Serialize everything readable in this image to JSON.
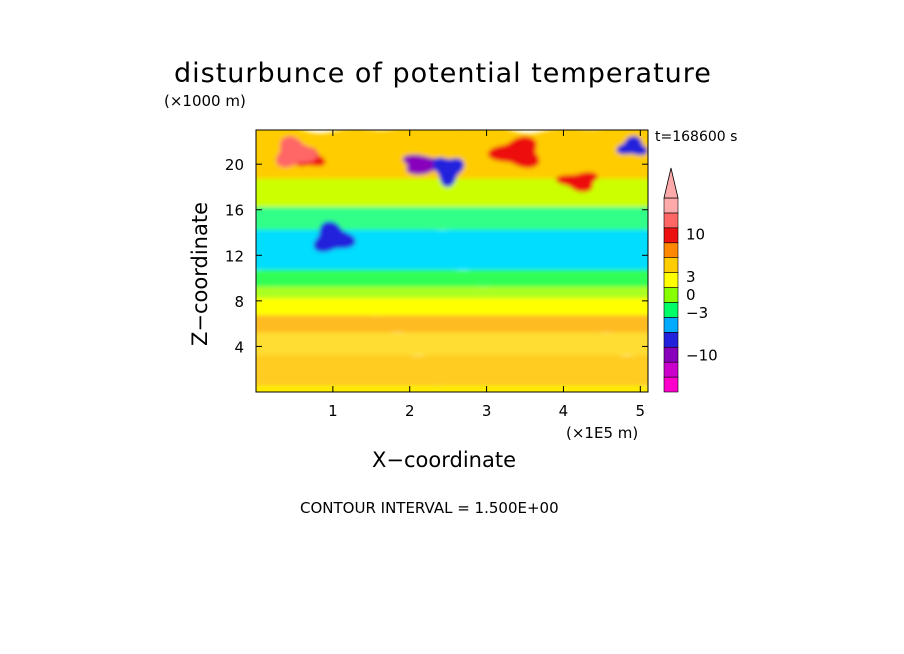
{
  "chart_data": {
    "type": "heatmap",
    "title": "disturbunce of potential temperature",
    "xlabel": "X−coordinate",
    "ylabel": "Z−coordinate",
    "x_unit": "(×1E5 m)",
    "y_unit": "(×1000 m)",
    "time_label": "t=168600 s",
    "contour_interval": "CONTOUR INTERVAL = 1.500E+00",
    "xlim": [
      0,
      5.1
    ],
    "ylim": [
      0,
      23
    ],
    "x_ticks": [
      "1",
      "2",
      "3",
      "4",
      "5"
    ],
    "x_tick_values": [
      1,
      2,
      3,
      4,
      5
    ],
    "y_ticks": [
      "4",
      "8",
      "12",
      "16",
      "20"
    ],
    "y_tick_values": [
      4,
      8,
      12,
      16,
      20
    ],
    "colorbar": {
      "labels": [
        "10",
        "3",
        "0",
        "−3",
        "−10"
      ],
      "label_values": [
        10,
        3,
        0,
        -3,
        -10
      ],
      "levels": [
        {
          "color": "#ff00cc"
        },
        {
          "color": "#cc00cc"
        },
        {
          "color": "#8800bb"
        },
        {
          "color": "#2222dd"
        },
        {
          "color": "#00aaff"
        },
        {
          "color": "#00ff66"
        },
        {
          "color": "#88ff00"
        },
        {
          "color": "#ffff00"
        },
        {
          "color": "#ffcc00"
        },
        {
          "color": "#ff8800"
        },
        {
          "color": "#ee1111"
        },
        {
          "color": "#ff6666"
        },
        {
          "color": "#ffaaaa"
        }
      ]
    },
    "bands": [
      {
        "z": [
          0,
          0.8
        ],
        "level": "orange-light",
        "color": "#ffee00"
      },
      {
        "z": [
          0.8,
          3.5
        ],
        "level": "orange",
        "color": "#ffcc22"
      },
      {
        "z": [
          3.5,
          5.5
        ],
        "level": "orange-light",
        "color": "#ffdd33"
      },
      {
        "z": [
          5.5,
          7
        ],
        "level": "orange",
        "color": "#ffbb22"
      },
      {
        "z": [
          7,
          8.5
        ],
        "level": "yellow",
        "color": "#ffff00"
      },
      {
        "z": [
          8.5,
          9.5
        ],
        "level": "green-yellow",
        "color": "#aaff22"
      },
      {
        "z": [
          9.5,
          11
        ],
        "level": "green",
        "color": "#33ff55"
      },
      {
        "z": [
          11,
          14.5
        ],
        "level": "cyan",
        "color": "#00ddff"
      },
      {
        "z": [
          14.5,
          16.5
        ],
        "level": "green",
        "color": "#33ff88"
      },
      {
        "z": [
          16.5,
          19
        ],
        "level": "yellow",
        "color": "#ccff00"
      },
      {
        "z": [
          19,
          23
        ],
        "level": "orange",
        "color": "#ffcc00"
      }
    ],
    "features": [
      {
        "name": "warm-core-left",
        "x": 0.7,
        "z": 20.5,
        "color": "#ee1111"
      },
      {
        "name": "warm-core-left-inner",
        "x": 0.5,
        "z": 21,
        "color": "#ff6666"
      },
      {
        "name": "cold-core-center",
        "x": 2.2,
        "z": 20,
        "color": "#8800bb"
      },
      {
        "name": "cold-core-center-2",
        "x": 2.5,
        "z": 19.5,
        "color": "#2222dd"
      },
      {
        "name": "warm-core-right",
        "x": 4.2,
        "z": 18.5,
        "color": "#ee1111"
      },
      {
        "name": "warm-core-right-2",
        "x": 3.4,
        "z": 21,
        "color": "#ee1111"
      },
      {
        "name": "cold-core-top-right",
        "x": 4.9,
        "z": 21.5,
        "color": "#2222dd"
      },
      {
        "name": "cold-core-mid-left",
        "x": 1.0,
        "z": 13.5,
        "color": "#2222dd"
      }
    ]
  }
}
